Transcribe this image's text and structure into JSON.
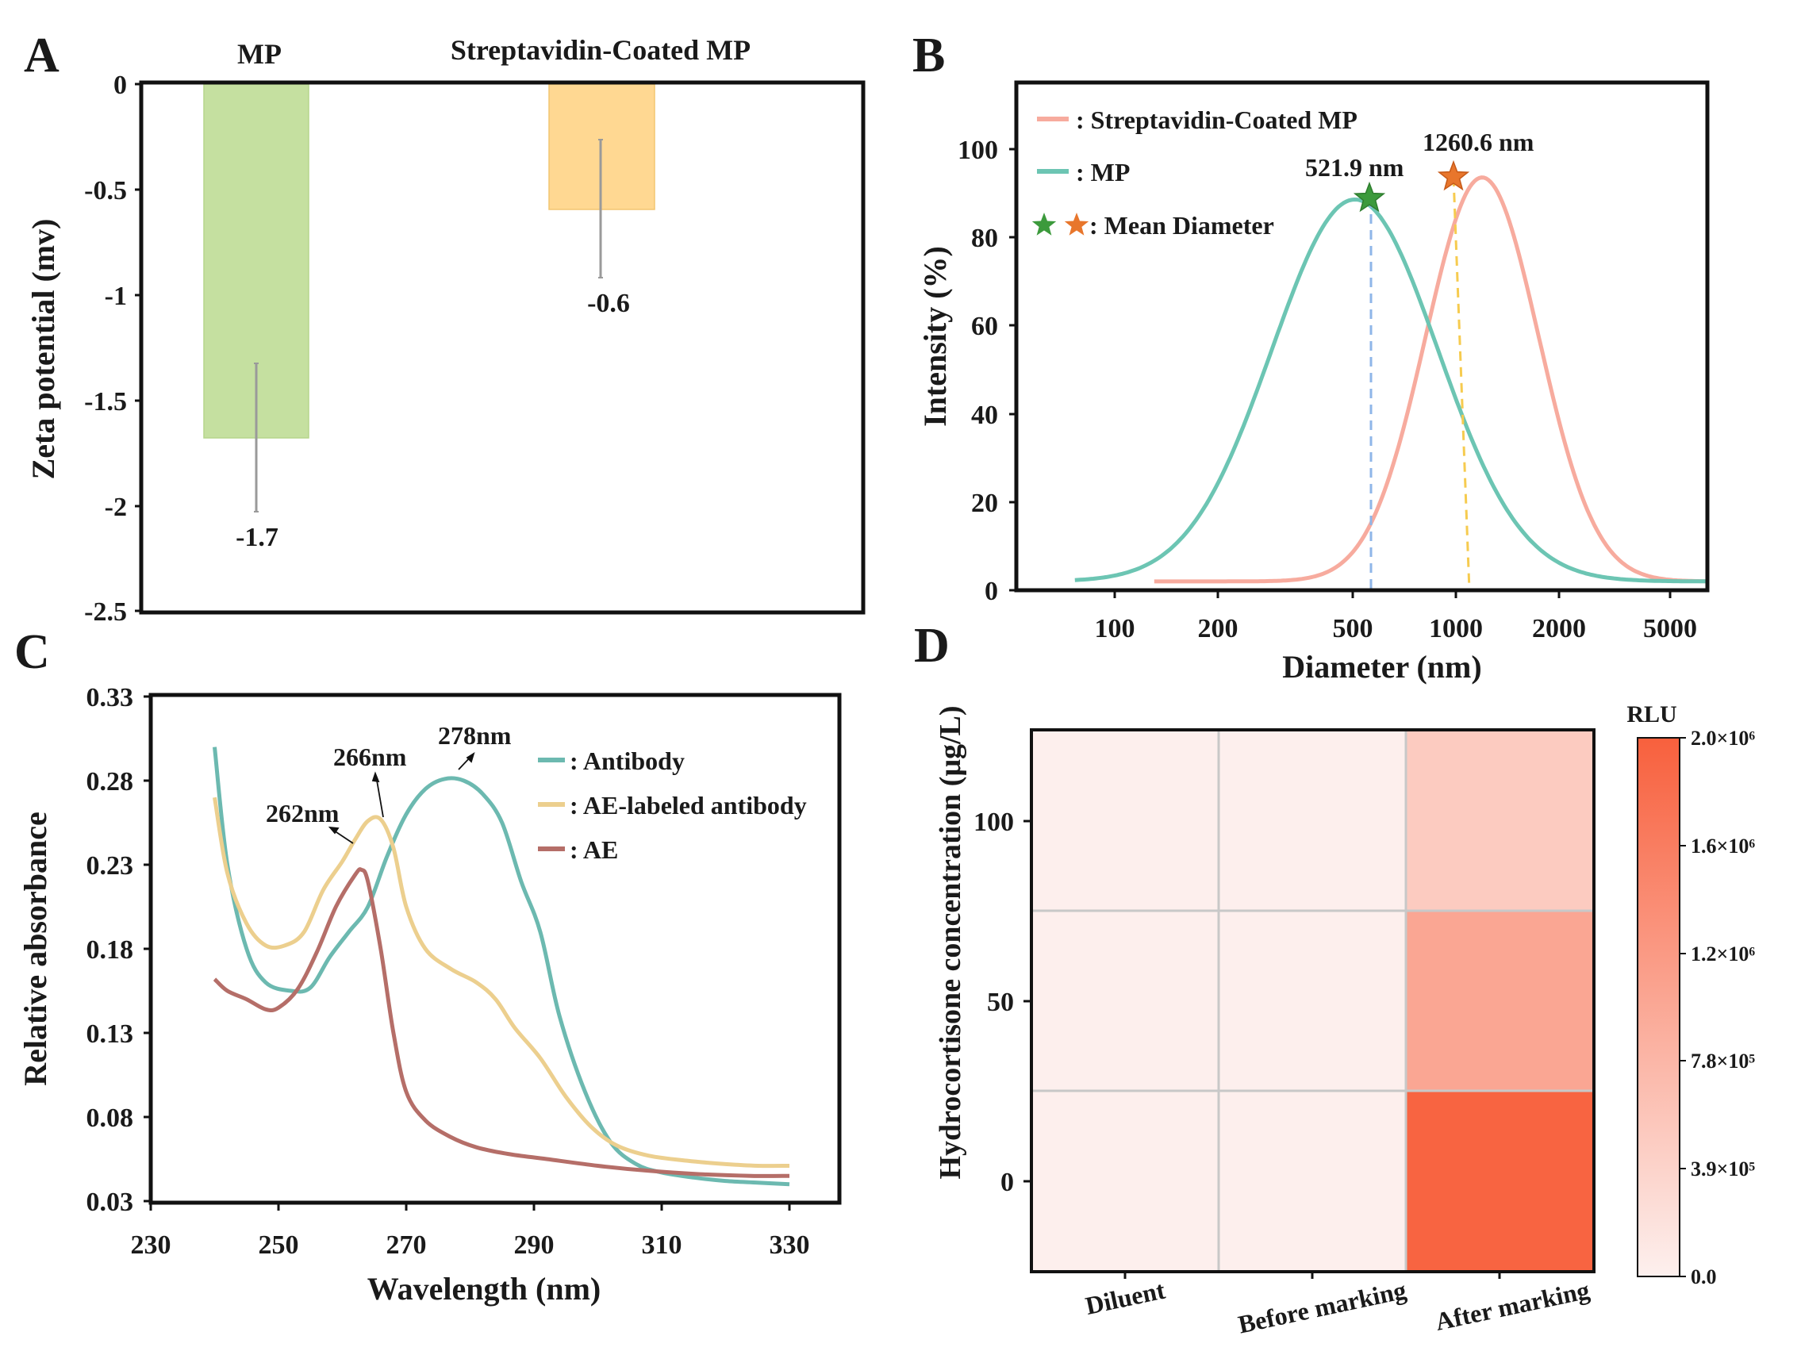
{
  "colors": {
    "mp_green": "#c5e0a0",
    "strep_orange": "#ffd892",
    "teal": "#6cc5b3",
    "salmon": "#f7ab9e",
    "ae_yellow": "#eccf8e",
    "ae_brown": "#b56e68",
    "heat_low": "#fdf0ee",
    "heat_high": "#f8603d"
  },
  "chart_data": [
    {
      "panel": "A",
      "type": "bar",
      "categories": [
        "MP",
        "Streptavidin-Coated MP"
      ],
      "values": [
        -1.7,
        -0.6
      ],
      "errors": [
        0.37,
        0.32
      ],
      "value_labels": [
        "-1.7",
        "-0.6"
      ],
      "ylabel": "Zeta potential (mv)",
      "ylim": [
        -2.5,
        0
      ],
      "yticks": [
        "0",
        "-0.5",
        "-1",
        "-1.5",
        "-2",
        "-2.5"
      ]
    },
    {
      "panel": "B",
      "type": "line",
      "xscale": "log",
      "xlabel": "Diameter (nm)",
      "ylabel": "Intensity (%)",
      "xlim": [
        50,
        6000
      ],
      "ylim": [
        0,
        115
      ],
      "xticks": [
        "100",
        "200",
        "500",
        "1000",
        "2000",
        "5000"
      ],
      "yticks": [
        "0",
        "20",
        "40",
        "60",
        "80",
        "100"
      ],
      "series": [
        {
          "name": ": Streptavidin-Coated MP",
          "peak_x": 1260.6,
          "peak_y": 93.5,
          "sigma_log10": 0.17,
          "base": 2,
          "x_start": 130,
          "x_end": 6000,
          "peak_label": "1260.6 nm"
        },
        {
          "name": ": MP",
          "peak_x": 521.9,
          "peak_y": 88.5,
          "sigma_log10": 0.25,
          "base": 2,
          "x_start": 75,
          "x_end": 6000,
          "peak_label": "521.9 nm"
        }
      ],
      "marker_legend": ": Mean Diameter"
    },
    {
      "panel": "C",
      "type": "line",
      "xlabel": "Wavelength (nm)",
      "ylabel": "Relative absorbance",
      "xlim": [
        230,
        330
      ],
      "ylim": [
        0.03,
        0.33
      ],
      "xticks": [
        "230",
        "250",
        "270",
        "290",
        "310",
        "330"
      ],
      "yticks": [
        "0.03",
        "0.08",
        "0.13",
        "0.18",
        "0.23",
        "0.28",
        "0.33"
      ],
      "series": [
        {
          "name": ": Antibody",
          "points": [
            [
              240,
              0.3
            ],
            [
              242,
              0.23
            ],
            [
              245,
              0.18
            ],
            [
              248,
              0.16
            ],
            [
              252,
              0.155
            ],
            [
              255,
              0.157
            ],
            [
              258,
              0.175
            ],
            [
              261,
              0.19
            ],
            [
              264,
              0.205
            ],
            [
              267,
              0.235
            ],
            [
              270,
              0.26
            ],
            [
              273,
              0.275
            ],
            [
              276,
              0.281
            ],
            [
              279,
              0.28
            ],
            [
              282,
              0.272
            ],
            [
              285,
              0.255
            ],
            [
              288,
              0.22
            ],
            [
              291,
              0.19
            ],
            [
              294,
              0.14
            ],
            [
              298,
              0.095
            ],
            [
              302,
              0.065
            ],
            [
              306,
              0.052
            ],
            [
              310,
              0.047
            ],
            [
              315,
              0.044
            ],
            [
              320,
              0.042
            ],
            [
              325,
              0.041
            ],
            [
              330,
              0.04
            ]
          ]
        },
        {
          "name": ": AE-labeled antibody",
          "points": [
            [
              240,
              0.27
            ],
            [
              242,
              0.225
            ],
            [
              245,
              0.195
            ],
            [
              248,
              0.182
            ],
            [
              251,
              0.182
            ],
            [
              254,
              0.19
            ],
            [
              257,
              0.215
            ],
            [
              260,
              0.232
            ],
            [
              262,
              0.245
            ],
            [
              264,
              0.256
            ],
            [
              266,
              0.257
            ],
            [
              268,
              0.24
            ],
            [
              270,
              0.205
            ],
            [
              273,
              0.18
            ],
            [
              277,
              0.168
            ],
            [
              281,
              0.16
            ],
            [
              284,
              0.15
            ],
            [
              287,
              0.133
            ],
            [
              291,
              0.115
            ],
            [
              295,
              0.092
            ],
            [
              299,
              0.074
            ],
            [
              303,
              0.063
            ],
            [
              308,
              0.057
            ],
            [
              314,
              0.054
            ],
            [
              320,
              0.052
            ],
            [
              325,
              0.051
            ],
            [
              330,
              0.051
            ]
          ]
        },
        {
          "name": ": AE",
          "points": [
            [
              240,
              0.162
            ],
            [
              242,
              0.155
            ],
            [
              245,
              0.15
            ],
            [
              248,
              0.144
            ],
            [
              250,
              0.145
            ],
            [
              253,
              0.156
            ],
            [
              256,
              0.178
            ],
            [
              259,
              0.205
            ],
            [
              262,
              0.224
            ],
            [
              263,
              0.227
            ],
            [
              264,
              0.22
            ],
            [
              266,
              0.18
            ],
            [
              268,
              0.13
            ],
            [
              270,
              0.095
            ],
            [
              273,
              0.078
            ],
            [
              277,
              0.068
            ],
            [
              281,
              0.062
            ],
            [
              286,
              0.058
            ],
            [
              292,
              0.055
            ],
            [
              300,
              0.051
            ],
            [
              308,
              0.048
            ],
            [
              316,
              0.046
            ],
            [
              324,
              0.045
            ],
            [
              330,
              0.045
            ]
          ]
        }
      ],
      "annotations": [
        "262nm",
        "266nm",
        "278nm"
      ]
    },
    {
      "panel": "D",
      "type": "heatmap",
      "x_categories": [
        "Diluent",
        "Before marking",
        "After marking"
      ],
      "y_categories": [
        "0",
        "50",
        "100"
      ],
      "ylabel": "Hydrocortisone concentration (μg/L)",
      "values": [
        [
          15000,
          15000,
          1950000
        ],
        [
          15000,
          15000,
          1030000
        ],
        [
          15000,
          15000,
          520000
        ]
      ],
      "colorbar": {
        "label": "RLU",
        "range": [
          0,
          2000000
        ],
        "ticks": [
          "0.0",
          "3.9×10⁵",
          "7.8×10⁵",
          "1.2×10⁶",
          "1.6×10⁶",
          "2.0×10⁶"
        ]
      }
    }
  ],
  "panel_labels": [
    "A",
    "B",
    "C",
    "D"
  ]
}
